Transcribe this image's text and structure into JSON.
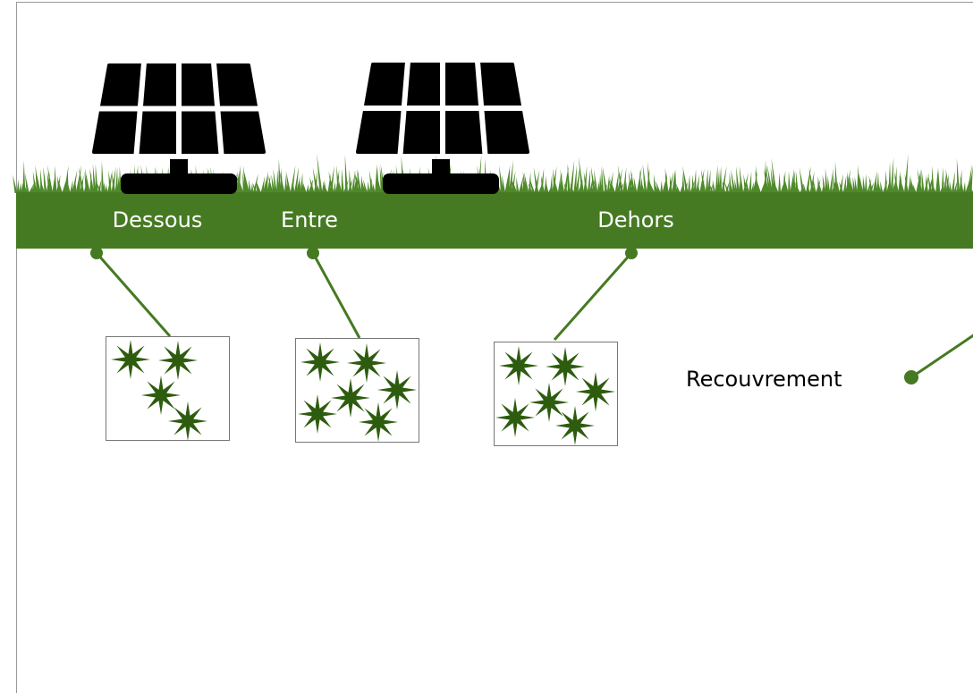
{
  "zones": [
    {
      "label": "Dessous"
    },
    {
      "label": "Entre"
    },
    {
      "label": "Dehors"
    }
  ],
  "legend": {
    "label": "Recouvrement"
  }
}
